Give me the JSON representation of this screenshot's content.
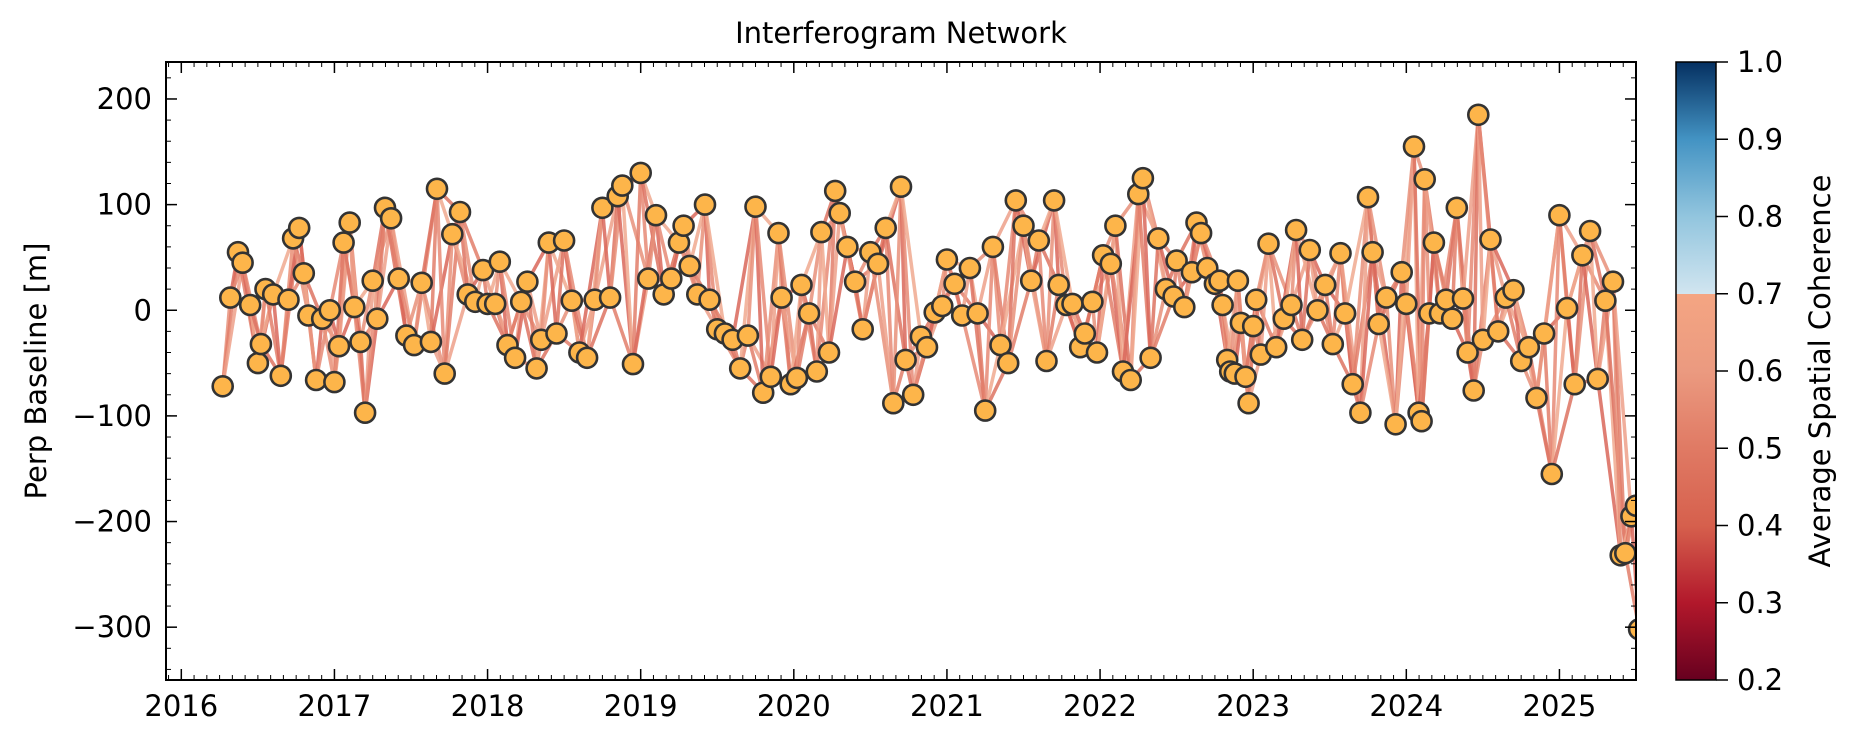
{
  "chart_data": {
    "type": "scatter",
    "title": "Interferogram Network",
    "ylabel": "Perp Baseline [m]",
    "xlabel": "",
    "xlim": [
      2015.9,
      2025.5
    ],
    "ylim": [
      -350,
      235
    ],
    "x_ticks": [
      2016,
      2017,
      2018,
      2019,
      2020,
      2021,
      2022,
      2023,
      2024,
      2025
    ],
    "x_tick_labels": [
      "2016",
      "2017",
      "2018",
      "2019",
      "2020",
      "2021",
      "2022",
      "2023",
      "2024",
      "2025"
    ],
    "y_ticks": [
      200,
      100,
      0,
      -100,
      -200,
      -300
    ],
    "y_tick_labels": [
      "200",
      "100",
      "0",
      "−100",
      "−200",
      "−300"
    ],
    "grid": false,
    "marker_color": "#fdb54a",
    "marker_edge_color": "#333333",
    "colorbar": {
      "label": "Average Spatial Coherence",
      "range": [
        0.2,
        1.0
      ],
      "ticks": [
        1.0,
        0.9,
        0.8,
        0.7,
        0.6,
        0.5,
        0.4,
        0.3,
        0.2
      ],
      "tick_labels": [
        "1.0",
        "0.9",
        "0.8",
        "0.7",
        "0.6",
        "0.5",
        "0.4",
        "0.3",
        "0.2"
      ],
      "colormap": "RdBu",
      "stops": [
        {
          "value": 0.2,
          "color": "#67001f"
        },
        {
          "value": 0.3,
          "color": "#b2182b"
        },
        {
          "value": 0.4,
          "color": "#d6604d"
        },
        {
          "value": 0.5,
          "color": "#e07a64"
        },
        {
          "value": 0.6,
          "color": "#eb9a80"
        },
        {
          "value": 0.7,
          "color": "#f4a582"
        },
        {
          "value": 0.7,
          "color": "#d1e5f0"
        },
        {
          "value": 0.8,
          "color": "#92c5de"
        },
        {
          "value": 0.9,
          "color": "#4393c3"
        },
        {
          "value": 1.0,
          "color": "#053061"
        }
      ]
    },
    "points": [
      [
        2016.27,
        -72
      ],
      [
        2016.32,
        12
      ],
      [
        2016.37,
        55
      ],
      [
        2016.4,
        45
      ],
      [
        2016.45,
        5
      ],
      [
        2016.5,
        -50
      ],
      [
        2016.52,
        -32
      ],
      [
        2016.55,
        20
      ],
      [
        2016.6,
        15
      ],
      [
        2016.65,
        -62
      ],
      [
        2016.7,
        10
      ],
      [
        2016.73,
        68
      ],
      [
        2016.77,
        78
      ],
      [
        2016.8,
        35
      ],
      [
        2016.83,
        -5
      ],
      [
        2016.88,
        -66
      ],
      [
        2016.92,
        -8
      ],
      [
        2016.97,
        0
      ],
      [
        2017.0,
        -68
      ],
      [
        2017.03,
        -34
      ],
      [
        2017.06,
        64
      ],
      [
        2017.1,
        83
      ],
      [
        2017.13,
        3
      ],
      [
        2017.17,
        -30
      ],
      [
        2017.2,
        -97
      ],
      [
        2017.25,
        28
      ],
      [
        2017.28,
        -8
      ],
      [
        2017.33,
        97
      ],
      [
        2017.37,
        87
      ],
      [
        2017.42,
        30
      ],
      [
        2017.47,
        -24
      ],
      [
        2017.52,
        -33
      ],
      [
        2017.57,
        26
      ],
      [
        2017.63,
        -30
      ],
      [
        2017.67,
        115
      ],
      [
        2017.72,
        -60
      ],
      [
        2017.77,
        72
      ],
      [
        2017.82,
        93
      ],
      [
        2017.87,
        15
      ],
      [
        2017.92,
        8
      ],
      [
        2017.97,
        38
      ],
      [
        2018.0,
        6
      ],
      [
        2018.05,
        6
      ],
      [
        2018.08,
        46
      ],
      [
        2018.13,
        -33
      ],
      [
        2018.18,
        -45
      ],
      [
        2018.22,
        8
      ],
      [
        2018.26,
        27
      ],
      [
        2018.32,
        -55
      ],
      [
        2018.35,
        -28
      ],
      [
        2018.4,
        64
      ],
      [
        2018.45,
        -22
      ],
      [
        2018.5,
        66
      ],
      [
        2018.55,
        9
      ],
      [
        2018.6,
        -40
      ],
      [
        2018.65,
        -45
      ],
      [
        2018.7,
        10
      ],
      [
        2018.75,
        97
      ],
      [
        2018.8,
        12
      ],
      [
        2018.85,
        108
      ],
      [
        2018.88,
        118
      ],
      [
        2018.95,
        -51
      ],
      [
        2019.0,
        130
      ],
      [
        2019.05,
        30
      ],
      [
        2019.1,
        90
      ],
      [
        2019.15,
        15
      ],
      [
        2019.2,
        30
      ],
      [
        2019.25,
        64
      ],
      [
        2019.28,
        80
      ],
      [
        2019.32,
        42
      ],
      [
        2019.37,
        15
      ],
      [
        2019.42,
        100
      ],
      [
        2019.45,
        10
      ],
      [
        2019.5,
        -18
      ],
      [
        2019.55,
        -22
      ],
      [
        2019.6,
        -28
      ],
      [
        2019.65,
        -55
      ],
      [
        2019.7,
        -24
      ],
      [
        2019.75,
        98
      ],
      [
        2019.8,
        -78
      ],
      [
        2019.85,
        -63
      ],
      [
        2019.9,
        73
      ],
      [
        2019.92,
        12
      ],
      [
        2019.98,
        -70
      ],
      [
        2020.02,
        -64
      ],
      [
        2020.05,
        24
      ],
      [
        2020.1,
        -3
      ],
      [
        2020.15,
        -58
      ],
      [
        2020.18,
        74
      ],
      [
        2020.23,
        -40
      ],
      [
        2020.27,
        113
      ],
      [
        2020.3,
        92
      ],
      [
        2020.35,
        60
      ],
      [
        2020.4,
        27
      ],
      [
        2020.45,
        -18
      ],
      [
        2020.5,
        55
      ],
      [
        2020.55,
        44
      ],
      [
        2020.6,
        78
      ],
      [
        2020.65,
        -88
      ],
      [
        2020.7,
        117
      ],
      [
        2020.73,
        -47
      ],
      [
        2020.78,
        -80
      ],
      [
        2020.83,
        -25
      ],
      [
        2020.87,
        -35
      ],
      [
        2020.92,
        -2
      ],
      [
        2020.97,
        4
      ],
      [
        2021.0,
        48
      ],
      [
        2021.05,
        25
      ],
      [
        2021.1,
        -5
      ],
      [
        2021.15,
        40
      ],
      [
        2021.2,
        -3
      ],
      [
        2021.25,
        -95
      ],
      [
        2021.3,
        60
      ],
      [
        2021.35,
        -33
      ],
      [
        2021.4,
        -50
      ],
      [
        2021.45,
        104
      ],
      [
        2021.5,
        80
      ],
      [
        2021.55,
        28
      ],
      [
        2021.6,
        66
      ],
      [
        2021.65,
        -48
      ],
      [
        2021.7,
        104
      ],
      [
        2021.73,
        24
      ],
      [
        2021.78,
        5
      ],
      [
        2021.82,
        6
      ],
      [
        2021.87,
        -35
      ],
      [
        2021.9,
        -22
      ],
      [
        2021.95,
        8
      ],
      [
        2021.98,
        -40
      ],
      [
        2022.02,
        52
      ],
      [
        2022.07,
        44
      ],
      [
        2022.1,
        80
      ],
      [
        2022.15,
        -58
      ],
      [
        2022.2,
        -66
      ],
      [
        2022.25,
        110
      ],
      [
        2022.28,
        125
      ],
      [
        2022.33,
        -45
      ],
      [
        2022.38,
        68
      ],
      [
        2022.43,
        20
      ],
      [
        2022.48,
        13
      ],
      [
        2022.5,
        47
      ],
      [
        2022.55,
        3
      ],
      [
        2022.6,
        36
      ],
      [
        2022.63,
        83
      ],
      [
        2022.66,
        73
      ],
      [
        2022.7,
        40
      ],
      [
        2022.75,
        25
      ],
      [
        2022.78,
        28
      ],
      [
        2022.8,
        5
      ],
      [
        2022.83,
        -47
      ],
      [
        2022.85,
        -58
      ],
      [
        2022.88,
        -60
      ],
      [
        2022.9,
        28
      ],
      [
        2022.92,
        -12
      ],
      [
        2022.95,
        -63
      ],
      [
        2022.97,
        -88
      ],
      [
        2023.0,
        -15
      ],
      [
        2023.02,
        10
      ],
      [
        2023.05,
        -42
      ],
      [
        2023.1,
        63
      ],
      [
        2023.15,
        -35
      ],
      [
        2023.2,
        -8
      ],
      [
        2023.25,
        5
      ],
      [
        2023.28,
        76
      ],
      [
        2023.32,
        -28
      ],
      [
        2023.37,
        57
      ],
      [
        2023.42,
        0
      ],
      [
        2023.47,
        24
      ],
      [
        2023.52,
        -32
      ],
      [
        2023.57,
        54
      ],
      [
        2023.6,
        -3
      ],
      [
        2023.65,
        -70
      ],
      [
        2023.7,
        -97
      ],
      [
        2023.75,
        107
      ],
      [
        2023.78,
        55
      ],
      [
        2023.82,
        -13
      ],
      [
        2023.87,
        12
      ],
      [
        2023.93,
        -108
      ],
      [
        2023.97,
        36
      ],
      [
        2024.0,
        6
      ],
      [
        2024.05,
        155
      ],
      [
        2024.08,
        -97
      ],
      [
        2024.1,
        -105
      ],
      [
        2024.12,
        124
      ],
      [
        2024.15,
        -3
      ],
      [
        2024.18,
        64
      ],
      [
        2024.22,
        -3
      ],
      [
        2024.26,
        10
      ],
      [
        2024.3,
        -8
      ],
      [
        2024.33,
        97
      ],
      [
        2024.37,
        11
      ],
      [
        2024.4,
        -40
      ],
      [
        2024.44,
        -76
      ],
      [
        2024.47,
        185
      ],
      [
        2024.5,
        -28
      ],
      [
        2024.55,
        67
      ],
      [
        2024.6,
        -20
      ],
      [
        2024.65,
        12
      ],
      [
        2024.7,
        19
      ],
      [
        2024.75,
        -48
      ],
      [
        2024.8,
        -35
      ],
      [
        2024.85,
        -83
      ],
      [
        2024.9,
        -22
      ],
      [
        2024.95,
        -155
      ],
      [
        2025.0,
        90
      ],
      [
        2025.05,
        2
      ],
      [
        2025.1,
        -70
      ],
      [
        2025.15,
        52
      ],
      [
        2025.2,
        75
      ],
      [
        2025.25,
        -65
      ],
      [
        2025.3,
        9
      ],
      [
        2025.35,
        27
      ],
      [
        2025.4,
        -232
      ],
      [
        2025.43,
        -230
      ],
      [
        2025.47,
        -195
      ],
      [
        2025.5,
        -185
      ],
      [
        2025.52,
        -302
      ]
    ]
  }
}
